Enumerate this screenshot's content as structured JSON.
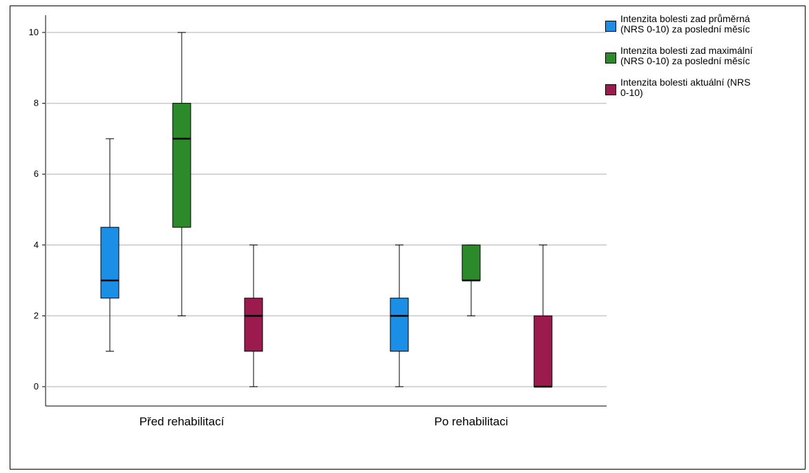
{
  "chart_data": {
    "type": "boxplot",
    "categories": [
      "Před rehabilitací",
      "Po rehabilitaci"
    ],
    "y_ticks": [
      "0",
      "2",
      "4",
      "6",
      "8",
      "10"
    ],
    "ylim": [
      -0.5,
      10.5
    ],
    "grid": true,
    "legend_position": "top-right",
    "series": [
      {
        "name": "Intenzita bolesti zad průměrná (NRS 0-10) za poslední měsíc",
        "color": "#1b8fe6",
        "boxes": [
          {
            "category": "Před rehabilitací",
            "min": 1,
            "q1": 2.5,
            "median": 3,
            "q3": 4.5,
            "max": 7
          },
          {
            "category": "Po rehabilitaci",
            "min": 0,
            "q1": 1,
            "median": 2,
            "q3": 2.5,
            "max": 4
          }
        ]
      },
      {
        "name": "Intenzita bolesti zad maximální (NRS 0-10) za poslední měsíc",
        "color": "#2d8a2b",
        "boxes": [
          {
            "category": "Před rehabilitací",
            "min": 2,
            "q1": 4.5,
            "median": 7,
            "q3": 8,
            "max": 10
          },
          {
            "category": "Po rehabilitaci",
            "min": 2,
            "q1": 3,
            "median": 3,
            "q3": 4,
            "max": 4
          }
        ]
      },
      {
        "name": "Intenzita bolesti aktuální (NRS 0-10)",
        "color": "#9c1b4f",
        "boxes": [
          {
            "category": "Před rehabilitací",
            "min": 0,
            "q1": 1,
            "median": 2,
            "q3": 2.5,
            "max": 4
          },
          {
            "category": "Po rehabilitaci",
            "min": 0,
            "q1": 0,
            "median": 0,
            "q3": 2,
            "max": 4
          }
        ]
      }
    ]
  },
  "legend": {
    "items": [
      {
        "line1": "Intenzita bolesti zad průměrná",
        "line2": "(NRS 0-10) za poslední měsíc"
      },
      {
        "line1": "Intenzita bolesti zad maximální",
        "line2": "(NRS 0-10) za poslední měsíc"
      },
      {
        "line1": "Intenzita bolesti aktuální (NRS",
        "line2": "0-10)"
      }
    ]
  }
}
